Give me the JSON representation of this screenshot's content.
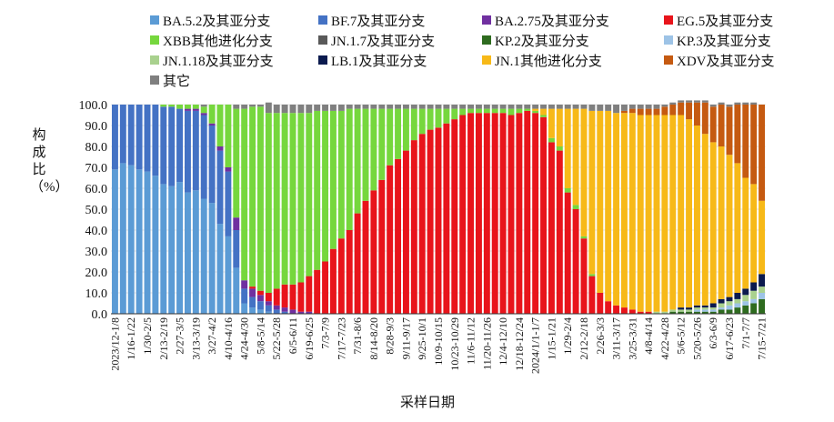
{
  "chart_data": {
    "type": "bar",
    "stacked": true,
    "title": "",
    "xlabel": "采样日期",
    "ylabel": "构成比（%）",
    "ylim": [
      0,
      100
    ],
    "yticks": [
      "0.0",
      "10.0",
      "20.0",
      "30.0",
      "40.0",
      "50.0",
      "60.0",
      "70.0",
      "80.0",
      "90.0",
      "100.0"
    ],
    "legend_position": "top",
    "x_tick_labels": [
      "2023/12-1/8",
      "1/16-1/22",
      "1/30-2/5",
      "2/13-2/19",
      "2/27-3/5",
      "3/13-3/19",
      "3/27-4/2",
      "4/10-4/16",
      "4/24-4/30",
      "5/8-5/14",
      "5/22-5/28",
      "6/5-6/11",
      "6/19-6/25",
      "7/3-7/9",
      "7/17-7/23",
      "7/31-8/6",
      "8/14-8/20",
      "8/28-9/3",
      "9/11-9/17",
      "9/25-10/1",
      "10/9-10/15",
      "10/23-10/29",
      "11/6-11/12",
      "11/20-11/26",
      "12/4-12/10",
      "12/18-12/24",
      "2024/1/1-1/7",
      "1/15-1/21",
      "1/29-2/4",
      "2/12-2/18",
      "2/26-3/3",
      "3/11-3/17",
      "3/25-3/31",
      "4/8-4/14",
      "4/22-4/28",
      "5/6-5/12",
      "5/20-5/26",
      "6/3-6/9",
      "6/17-6/23",
      "7/1-7/7",
      "7/15-7/21"
    ],
    "series": [
      {
        "name": "BA.5.2及其亚分支",
        "color": "#5b9bd5",
        "values": [
          69,
          72,
          71,
          69,
          68,
          66,
          62,
          61,
          63,
          58,
          59,
          55,
          53,
          43,
          37,
          22,
          5,
          3,
          2,
          1,
          0,
          0,
          0,
          0,
          0,
          0,
          0,
          0,
          0,
          0,
          0,
          0,
          0,
          0,
          0,
          0,
          0,
          0,
          0,
          0,
          0,
          0,
          0,
          0,
          0,
          0,
          0,
          0,
          0,
          0,
          0,
          0,
          0,
          0,
          0,
          0,
          0,
          0,
          0,
          0,
          0,
          0,
          0,
          0,
          0,
          0,
          0,
          0,
          0,
          0,
          0,
          0,
          0,
          0,
          0,
          0,
          0,
          0,
          0,
          0,
          0
        ]
      },
      {
        "name": "BF.7及其亚分支",
        "color": "#4472c4",
        "values": [
          31,
          28,
          29,
          31,
          32,
          34,
          37,
          38,
          35,
          39,
          38,
          40,
          37,
          35,
          31,
          18,
          7,
          5,
          4,
          3,
          2,
          1,
          0,
          0,
          0,
          0,
          0,
          0,
          0,
          0,
          0,
          0,
          0,
          0,
          0,
          0,
          0,
          0,
          0,
          0,
          0,
          0,
          0,
          0,
          0,
          0,
          0,
          0,
          0,
          0,
          0,
          0,
          0,
          0,
          0,
          0,
          0,
          0,
          0,
          0,
          0,
          0,
          0,
          0,
          0,
          0,
          0,
          0,
          0,
          0,
          0,
          0,
          0,
          0,
          0,
          0,
          0,
          0,
          0,
          0,
          0
        ]
      },
      {
        "name": "BA.2.75及其亚分支",
        "color": "#7030a0",
        "values": [
          0,
          0,
          0,
          0,
          0,
          0,
          0,
          0,
          0,
          1,
          1,
          1,
          1,
          2,
          2,
          6,
          4,
          4,
          3,
          2,
          2,
          2,
          2,
          1,
          1,
          0,
          0,
          0,
          0,
          0,
          0,
          0,
          0,
          0,
          0,
          0,
          0,
          0,
          0,
          0,
          0,
          0,
          0,
          0,
          0,
          0,
          0,
          0,
          0,
          0,
          0,
          0,
          0,
          0,
          0,
          0,
          0,
          0,
          0,
          0,
          0,
          0,
          0,
          0,
          0,
          0,
          0,
          0,
          0,
          0,
          0,
          0,
          0,
          0,
          0,
          0,
          0,
          0,
          0,
          0,
          0
        ]
      },
      {
        "name": "EG.5及其亚分支",
        "color": "#e8141b",
        "values": [
          0,
          0,
          0,
          0,
          0,
          0,
          0,
          0,
          0,
          0,
          0,
          0,
          0,
          0,
          0,
          0,
          0,
          1,
          2,
          4,
          8,
          11,
          12,
          14,
          17,
          21,
          25,
          31,
          36,
          40,
          48,
          54,
          59,
          64,
          71,
          74,
          78,
          83,
          86,
          88,
          89,
          91,
          93,
          95,
          96,
          96,
          96,
          96,
          96,
          95,
          96,
          97,
          96,
          94,
          82,
          78,
          58,
          50,
          36,
          18,
          10,
          6,
          4,
          3,
          2,
          1,
          1,
          0,
          0,
          0,
          0,
          0,
          0,
          0,
          0,
          0,
          0,
          0,
          0,
          0,
          0
        ]
      },
      {
        "name": "XBB其他进化分支",
        "color": "#76d73d",
        "values": [
          0,
          0,
          0,
          0,
          0,
          0,
          1,
          1,
          2,
          2,
          2,
          3,
          9,
          20,
          30,
          52,
          82,
          86,
          88,
          86,
          84,
          82,
          82,
          81,
          78,
          76,
          72,
          66,
          61,
          58,
          50,
          44,
          39,
          34,
          27,
          24,
          20,
          15,
          12,
          10,
          9,
          7,
          5,
          3,
          2,
          2,
          2,
          2,
          2,
          3,
          2,
          1,
          1,
          1,
          2,
          2,
          2,
          2,
          1,
          1,
          0,
          0,
          0,
          0,
          0,
          0,
          0,
          0,
          0,
          0,
          0,
          0,
          0,
          0,
          0,
          0,
          0,
          0,
          0,
          0,
          0
        ]
      },
      {
        "name": "JN.1.7及其亚分支",
        "color": "#595959",
        "values": [
          0,
          0,
          0,
          0,
          0,
          0,
          0,
          0,
          0,
          0,
          0,
          0,
          0,
          0,
          0,
          0,
          0,
          0,
          0,
          0,
          0,
          0,
          0,
          0,
          0,
          0,
          0,
          0,
          0,
          0,
          0,
          0,
          0,
          0,
          0,
          0,
          0,
          0,
          0,
          0,
          0,
          0,
          0,
          0,
          0,
          0,
          0,
          0,
          0,
          0,
          0,
          0,
          0,
          0,
          0,
          0,
          0,
          0,
          0,
          0,
          0,
          0,
          0,
          0,
          0,
          0,
          0,
          0,
          0,
          0,
          0,
          0,
          0,
          0,
          0,
          0,
          0,
          0,
          0,
          0,
          0
        ]
      },
      {
        "name": "KP.2及其亚分支",
        "color": "#2e6b1f",
        "values": [
          0,
          0,
          0,
          0,
          0,
          0,
          0,
          0,
          0,
          0,
          0,
          0,
          0,
          0,
          0,
          0,
          0,
          0,
          0,
          0,
          0,
          0,
          0,
          0,
          0,
          0,
          0,
          0,
          0,
          0,
          0,
          0,
          0,
          0,
          0,
          0,
          0,
          0,
          0,
          0,
          0,
          0,
          0,
          0,
          0,
          0,
          0,
          0,
          0,
          0,
          0,
          0,
          0,
          0,
          0,
          0,
          0,
          0,
          0,
          0,
          0,
          0,
          0,
          0,
          0,
          0,
          0,
          0,
          0,
          1,
          1,
          1,
          1,
          1,
          1,
          2,
          2,
          3,
          4,
          5,
          7
        ]
      },
      {
        "name": "KP.3及其亚分支",
        "color": "#9dc3e6",
        "values": [
          0,
          0,
          0,
          0,
          0,
          0,
          0,
          0,
          0,
          0,
          0,
          0,
          0,
          0,
          0,
          0,
          0,
          0,
          0,
          0,
          0,
          0,
          0,
          0,
          0,
          0,
          0,
          0,
          0,
          0,
          0,
          0,
          0,
          0,
          0,
          0,
          0,
          0,
          0,
          0,
          0,
          0,
          0,
          0,
          0,
          0,
          0,
          0,
          0,
          0,
          0,
          0,
          0,
          0,
          0,
          0,
          0,
          0,
          0,
          0,
          0,
          0,
          0,
          0,
          0,
          0,
          0,
          0,
          0,
          0,
          0,
          0,
          1,
          1,
          1,
          1,
          2,
          2,
          2,
          2,
          3
        ]
      },
      {
        "name": "JN.1.18及其亚分支",
        "color": "#a9d18e",
        "values": [
          0,
          0,
          0,
          0,
          0,
          0,
          0,
          0,
          0,
          0,
          0,
          0,
          0,
          0,
          0,
          0,
          0,
          0,
          0,
          0,
          0,
          0,
          0,
          0,
          0,
          0,
          0,
          0,
          0,
          0,
          0,
          0,
          0,
          0,
          0,
          0,
          0,
          0,
          0,
          0,
          0,
          0,
          0,
          0,
          0,
          0,
          0,
          0,
          0,
          0,
          0,
          0,
          0,
          0,
          0,
          0,
          0,
          0,
          0,
          0,
          0,
          0,
          0,
          0,
          0,
          0,
          0,
          1,
          1,
          1,
          1,
          1,
          1,
          1,
          1,
          2,
          2,
          2,
          3,
          4,
          3
        ]
      },
      {
        "name": "LB.1及其亚分支",
        "color": "#0b1a4e",
        "values": [
          0,
          0,
          0,
          0,
          0,
          0,
          0,
          0,
          0,
          0,
          0,
          0,
          0,
          0,
          0,
          0,
          0,
          0,
          0,
          0,
          0,
          0,
          0,
          0,
          0,
          0,
          0,
          0,
          0,
          0,
          0,
          0,
          0,
          0,
          0,
          0,
          0,
          0,
          0,
          0,
          0,
          0,
          0,
          0,
          0,
          0,
          0,
          0,
          0,
          0,
          0,
          0,
          0,
          0,
          0,
          0,
          0,
          0,
          0,
          0,
          0,
          0,
          0,
          0,
          0,
          0,
          0,
          0,
          0,
          0,
          1,
          1,
          1,
          1,
          2,
          2,
          2,
          3,
          3,
          4,
          6
        ]
      },
      {
        "name": "JN.1其他进化分支",
        "color": "#f7b918",
        "values": [
          0,
          0,
          0,
          0,
          0,
          0,
          0,
          0,
          0,
          0,
          0,
          0,
          0,
          0,
          0,
          0,
          0,
          0,
          0,
          0,
          0,
          0,
          0,
          0,
          0,
          0,
          0,
          0,
          0,
          0,
          0,
          0,
          0,
          0,
          0,
          0,
          0,
          0,
          0,
          0,
          0,
          0,
          0,
          0,
          0,
          0,
          0,
          0,
          0,
          0,
          0,
          0,
          1,
          3,
          14,
          18,
          38,
          46,
          61,
          78,
          87,
          91,
          92,
          93,
          94,
          94,
          94,
          94,
          94,
          93,
          92,
          90,
          86,
          82,
          77,
          73,
          68,
          62,
          53,
          47,
          35
        ]
      },
      {
        "name": "XDV及其亚分支",
        "color": "#c55a11",
        "values": [
          0,
          0,
          0,
          0,
          0,
          0,
          0,
          0,
          0,
          0,
          0,
          0,
          0,
          0,
          0,
          0,
          0,
          0,
          0,
          0,
          0,
          0,
          0,
          0,
          0,
          0,
          0,
          0,
          0,
          0,
          0,
          0,
          0,
          0,
          0,
          0,
          0,
          0,
          0,
          0,
          0,
          0,
          0,
          0,
          0,
          0,
          0,
          0,
          0,
          0,
          0,
          0,
          0,
          0,
          0,
          0,
          0,
          0,
          0,
          0,
          0,
          0,
          0,
          1,
          2,
          3,
          3,
          3,
          4,
          5,
          6,
          8,
          11,
          15,
          17,
          20,
          23,
          28,
          35,
          38,
          46
        ]
      },
      {
        "name": "其它",
        "color": "#7f7f7f",
        "values": [
          0,
          0,
          0,
          0,
          0,
          0,
          0,
          0,
          0,
          0,
          0,
          1,
          0,
          0,
          0,
          2,
          2,
          1,
          1,
          5,
          4,
          4,
          4,
          4,
          4,
          3,
          3,
          3,
          3,
          2,
          2,
          2,
          2,
          2,
          2,
          2,
          2,
          2,
          2,
          2,
          2,
          2,
          2,
          2,
          2,
          2,
          2,
          2,
          2,
          2,
          2,
          2,
          2,
          2,
          2,
          2,
          2,
          2,
          2,
          3,
          3,
          3,
          4,
          3,
          2,
          2,
          2,
          2,
          1,
          1,
          1,
          1,
          1,
          1,
          1,
          1,
          1,
          1,
          1,
          1,
          0
        ]
      }
    ]
  }
}
